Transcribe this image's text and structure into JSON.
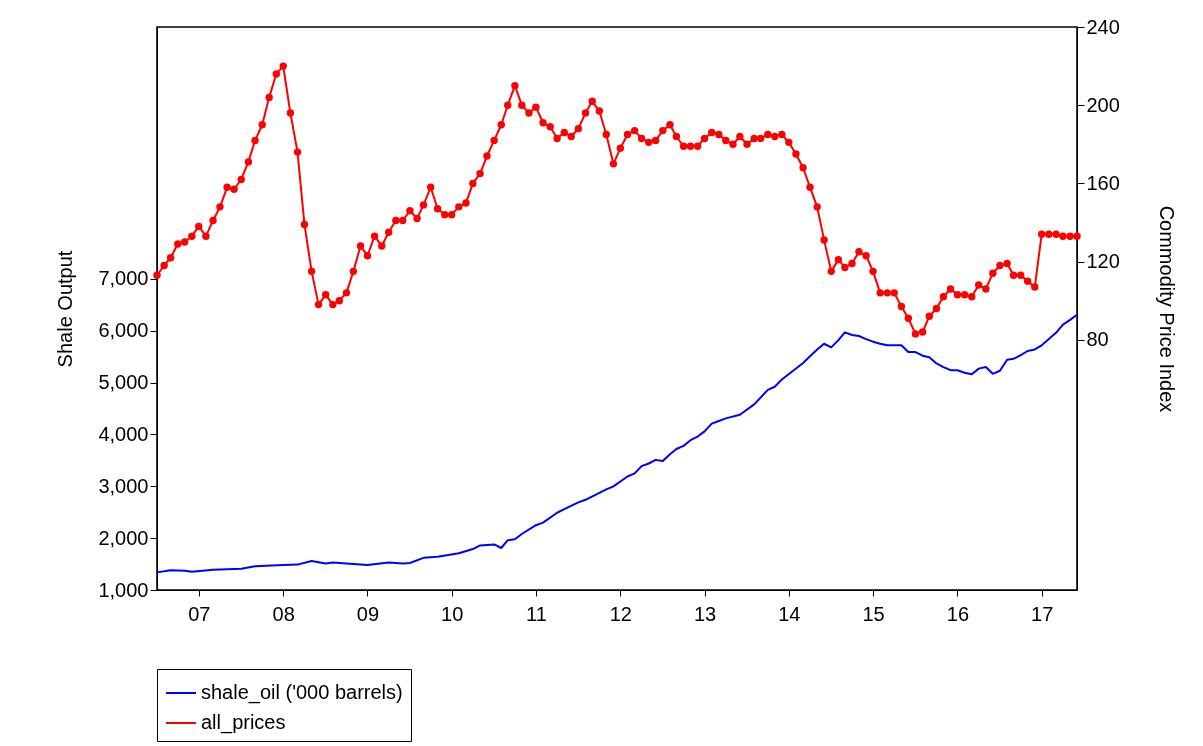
{
  "chart_data": {
    "type": "line",
    "xlabel": null,
    "ylabel": "Shale Output",
    "y2label": "Commodity Price Index",
    "x": [
      "2007-01",
      "2007-02",
      "2007-03",
      "2007-04",
      "2007-05",
      "2007-06",
      "2007-07",
      "2007-08",
      "2007-09",
      "2007-10",
      "2007-11",
      "2007-12",
      "2008-01",
      "2008-02",
      "2008-03",
      "2008-04",
      "2008-05",
      "2008-06",
      "2008-07",
      "2008-08",
      "2008-09",
      "2008-10",
      "2008-11",
      "2008-12",
      "2009-01",
      "2009-02",
      "2009-03",
      "2009-04",
      "2009-05",
      "2009-06",
      "2009-07",
      "2009-08",
      "2009-09",
      "2009-10",
      "2009-11",
      "2009-12",
      "2010-01",
      "2010-02",
      "2010-03",
      "2010-04",
      "2010-05",
      "2010-06",
      "2010-07",
      "2010-08",
      "2010-09",
      "2010-10",
      "2010-11",
      "2010-12",
      "2011-01",
      "2011-02",
      "2011-03",
      "2011-04",
      "2011-05",
      "2011-06",
      "2011-07",
      "2011-08",
      "2011-09",
      "2011-10",
      "2011-11",
      "2011-12",
      "2012-01",
      "2012-02",
      "2012-03",
      "2012-04",
      "2012-05",
      "2012-06",
      "2012-07",
      "2012-08",
      "2012-09",
      "2012-10",
      "2012-11",
      "2012-12",
      "2013-01",
      "2013-02",
      "2013-03",
      "2013-04",
      "2013-05",
      "2013-06",
      "2013-07",
      "2013-08",
      "2013-09",
      "2013-10",
      "2013-11",
      "2013-12",
      "2014-01",
      "2014-02",
      "2014-03",
      "2014-04",
      "2014-05",
      "2014-06",
      "2014-07",
      "2014-08",
      "2014-09",
      "2014-10",
      "2014-11",
      "2014-12",
      "2015-01",
      "2015-02",
      "2015-03",
      "2015-04",
      "2015-05",
      "2015-06",
      "2015-07",
      "2015-08",
      "2015-09",
      "2015-10",
      "2015-11",
      "2015-12",
      "2016-01",
      "2016-02",
      "2016-03",
      "2016-04",
      "2016-05",
      "2016-06",
      "2016-07",
      "2016-08",
      "2016-09",
      "2016-10",
      "2016-11",
      "2016-12",
      "2017-01",
      "2017-02",
      "2017-03",
      "2017-04",
      "2017-05",
      "2017-06",
      "2017-07",
      "2017-08",
      "2017-09",
      "2017-10",
      "2017-11",
      "2017-12"
    ],
    "series": [
      {
        "name": "shale_oil ('000 barrels)",
        "color": "#0000ff",
        "marker": "none",
        "x": [
          "2007-01",
          "2007-03",
          "2007-05",
          "2007-06",
          "2007-09",
          "2008-01",
          "2008-03",
          "2008-07",
          "2008-09",
          "2008-11",
          "2009-01",
          "2009-02",
          "2009-04",
          "2009-07",
          "2009-10",
          "2009-12",
          "2010-01",
          "2010-03",
          "2010-05",
          "2010-08",
          "2010-10",
          "2010-11",
          "2011-01",
          "2011-02",
          "2011-03",
          "2011-04",
          "2011-05",
          "2011-07",
          "2011-08",
          "2011-10",
          "2011-11",
          "2012-01",
          "2012-02",
          "2012-05",
          "2012-06",
          "2012-08",
          "2012-09",
          "2012-10",
          "2012-11",
          "2012-12",
          "2013-01",
          "2013-02",
          "2013-03",
          "2013-04",
          "2013-05",
          "2013-06",
          "2013-07",
          "2013-08",
          "2013-09",
          "2013-10",
          "2013-12",
          "2014-02",
          "2014-04",
          "2014-05",
          "2014-06",
          "2014-09",
          "2014-10",
          "2014-11",
          "2014-12",
          "2015-01",
          "2015-02",
          "2015-03",
          "2015-04",
          "2015-05",
          "2015-06",
          "2015-07",
          "2015-08",
          "2015-09",
          "2015-11",
          "2015-12",
          "2016-01",
          "2016-02",
          "2016-03",
          "2016-04",
          "2016-05",
          "2016-06",
          "2016-07",
          "2016-08",
          "2016-09",
          "2016-10",
          "2016-11",
          "2016-12",
          "2017-01",
          "2017-02",
          "2017-03",
          "2017-04",
          "2017-05",
          "2017-06",
          "2017-07",
          "2017-08",
          "2017-09",
          "2017-10",
          "2017-11",
          "2017-12"
        ],
        "values": [
          1340,
          1380,
          1370,
          1350,
          1390,
          1410,
          1460,
          1480,
          1490,
          1560,
          1510,
          1530,
          1510,
          1480,
          1530,
          1510,
          1520,
          1620,
          1640,
          1710,
          1790,
          1860,
          1880,
          1810,
          1960,
          1980,
          2080,
          2250,
          2300,
          2490,
          2560,
          2690,
          2740,
          2940,
          3000,
          3190,
          3250,
          3390,
          3440,
          3510,
          3490,
          3620,
          3720,
          3780,
          3890,
          3960,
          4060,
          4210,
          4260,
          4310,
          4380,
          4580,
          4860,
          4920,
          5060,
          5380,
          5510,
          5640,
          5750,
          5680,
          5820,
          5970,
          5920,
          5900,
          5840,
          5790,
          5750,
          5720,
          5720,
          5590,
          5590,
          5520,
          5490,
          5370,
          5300,
          5240,
          5240,
          5190,
          5160,
          5270,
          5300,
          5170,
          5230,
          5440,
          5460,
          5530,
          5610,
          5640,
          5720,
          5840,
          5960,
          6120,
          6210,
          6310
        ]
      },
      {
        "name": "all_prices",
        "color": "#ff0000",
        "marker": "circle",
        "axis": "y2",
        "values": [
          113,
          118,
          122,
          129,
          130,
          133,
          138,
          133,
          141,
          148,
          158,
          157,
          162,
          171,
          182,
          190,
          204,
          216,
          220,
          196,
          176,
          139,
          115,
          98,
          103,
          98,
          100,
          104,
          115,
          128,
          123,
          133,
          128,
          135,
          141,
          141,
          146,
          142,
          149,
          158,
          147,
          144,
          144,
          148,
          150,
          160,
          165,
          174,
          182,
          190,
          200,
          210,
          200,
          196,
          199,
          191,
          189,
          183,
          186,
          184,
          188,
          196,
          202,
          197,
          185,
          170,
          178,
          185,
          187,
          183,
          181,
          182,
          187,
          190,
          184,
          179,
          179,
          179,
          183,
          186,
          185,
          182,
          180,
          184,
          180,
          183,
          183,
          185,
          184,
          185,
          181,
          175,
          168,
          158,
          148,
          131,
          115,
          121,
          117,
          119,
          125,
          123,
          115,
          104,
          104,
          104,
          97,
          91,
          83,
          84,
          92,
          96,
          102,
          106,
          103,
          103,
          102,
          108,
          106,
          114,
          118,
          119,
          113,
          113,
          110,
          107,
          134,
          134,
          134,
          133,
          133,
          133
        ]
      }
    ],
    "xlim": [
      "2007-01",
      "2017-12"
    ],
    "xticks": [
      {
        "value": "2007-07",
        "label": "07"
      },
      {
        "value": "2008-07",
        "label": "08"
      },
      {
        "value": "2009-07",
        "label": "09"
      },
      {
        "value": "2010-07",
        "label": "10"
      },
      {
        "value": "2011-07",
        "label": "11"
      },
      {
        "value": "2012-07",
        "label": "12"
      },
      {
        "value": "2013-07",
        "label": "13"
      },
      {
        "value": "2014-07",
        "label": "14"
      },
      {
        "value": "2015-07",
        "label": "15"
      },
      {
        "value": "2016-07",
        "label": "16"
      },
      {
        "value": "2017-07",
        "label": "17"
      }
    ],
    "ylim": [
      1000,
      11860
    ],
    "yticks": [
      {
        "value": 1000,
        "label": "1,000"
      },
      {
        "value": 2000,
        "label": "2,000"
      },
      {
        "value": 3000,
        "label": "3,000"
      },
      {
        "value": 4000,
        "label": "4,000"
      },
      {
        "value": 5000,
        "label": "5,000"
      },
      {
        "value": 6000,
        "label": "6,000"
      },
      {
        "value": 7000,
        "label": "7,000"
      }
    ],
    "y2lim": [
      -48,
      240
    ],
    "y2ticks": [
      80,
      120,
      160,
      200,
      240
    ],
    "grid": false,
    "legend": "bottom"
  }
}
